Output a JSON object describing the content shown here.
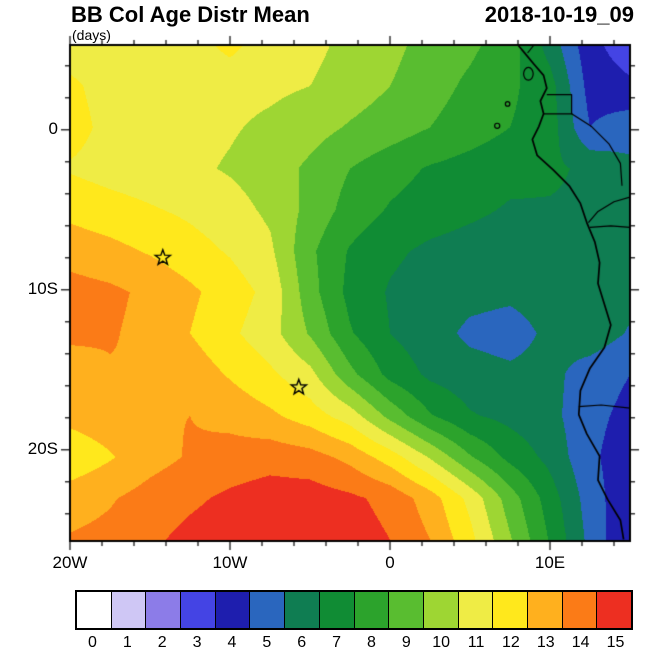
{
  "chart": {
    "title": "BB Col Age Distr Mean",
    "timestamp": "2018-10-19_09",
    "units": "(days)"
  },
  "axes": {
    "x_ticks": [
      {
        "lon": -20,
        "label": "20W"
      },
      {
        "lon": -10,
        "label": "10W"
      },
      {
        "lon": 0,
        "label": "0"
      },
      {
        "lon": 10,
        "label": "10E"
      }
    ],
    "y_ticks": [
      {
        "lat": 0,
        "label": "0"
      },
      {
        "lat": -10,
        "label": "10S"
      },
      {
        "lat": -20,
        "label": "20S"
      }
    ]
  },
  "colorbar": {
    "labels": [
      "0",
      "1",
      "2",
      "3",
      "4",
      "5",
      "6",
      "7",
      "8",
      "9",
      "10",
      "11",
      "12",
      "13",
      "14",
      "15"
    ],
    "colors": [
      "#ffffff",
      "#cfc7f5",
      "#8c7ce8",
      "#4444e4",
      "#1e1eae",
      "#2a66be",
      "#0f7d52",
      "#108c34",
      "#2ca32c",
      "#59bd30",
      "#9ed633",
      "#efec45",
      "#ffe81c",
      "#ffb01e",
      "#fb7b17",
      "#ed2f21"
    ]
  },
  "chart_data": {
    "type": "heatmap",
    "subtype": "filled_contour_map",
    "title": "BB Col Age Distr Mean",
    "timestamp": "2018-10-19_09",
    "units": "days",
    "lon_range": [
      -20,
      15
    ],
    "lat_range": [
      -25.6,
      5.3
    ],
    "contour_levels": [
      0,
      1,
      2,
      3,
      4,
      5,
      6,
      7,
      8,
      9,
      10,
      11,
      12,
      13,
      14,
      15
    ],
    "legend_position": "bottom",
    "lons": [
      -20,
      -17.5,
      -15,
      -12.5,
      -10,
      -7.5,
      -5,
      -2.5,
      0,
      2.5,
      5,
      7.5,
      10,
      12.5,
      15
    ],
    "lats": [
      5.3,
      2.725,
      0.15,
      -2.425,
      -5.0,
      -7.575,
      -10.15,
      -12.725,
      -15.3,
      -17.875,
      -20.45,
      -23.025,
      -25.6
    ],
    "values_days": [
      [
        11.5,
        11.5,
        11.5,
        11.5,
        12.3,
        11.4,
        11.3,
        10.7,
        10.3,
        9.6,
        9.2,
        8.5,
        6.6,
        4.3,
        3.4
      ],
      [
        12.2,
        11.6,
        11.5,
        11.4,
        11.3,
        11.2,
        11.0,
        10.5,
        10.0,
        9.4,
        8.8,
        8.2,
        7.4,
        4.6,
        4.2
      ],
      [
        12.4,
        11.7,
        11.5,
        11.3,
        11.1,
        10.8,
        10.4,
        9.9,
        9.5,
        9.0,
        8.5,
        8.0,
        7.5,
        5.0,
        5.6
      ],
      [
        11.9,
        11.6,
        11.4,
        11.2,
        10.9,
        10.5,
        9.8,
        9.0,
        8.4,
        7.9,
        7.6,
        7.3,
        7.2,
        6.8,
        6.2
      ],
      [
        12.7,
        12.4,
        12.1,
        11.8,
        11.4,
        10.8,
        9.7,
        8.6,
        7.9,
        7.5,
        7.2,
        6.9,
        6.9,
        6.8,
        6.3
      ],
      [
        13.6,
        13.3,
        12.9,
        12.4,
        11.9,
        11.2,
        9.2,
        7.9,
        7.2,
        6.8,
        6.6,
        6.5,
        6.6,
        6.9,
        6.4
      ],
      [
        14.4,
        14.2,
        13.8,
        13.2,
        12.5,
        11.7,
        9.4,
        7.7,
        6.9,
        6.5,
        6.3,
        6.2,
        6.4,
        6.8,
        6.3
      ],
      [
        14.2,
        14.1,
        13.7,
        13.0,
        12.2,
        11.4,
        9.9,
        8.1,
        7.0,
        6.4,
        5.8,
        5.6,
        6.2,
        6.6,
        5.9
      ],
      [
        13.5,
        13.9,
        14.0,
        13.6,
        12.9,
        12.2,
        11.3,
        9.3,
        7.7,
        6.8,
        6.4,
        6.2,
        6.3,
        5.5,
        5.0
      ],
      [
        13.3,
        13.6,
        13.9,
        14.0,
        13.7,
        13.2,
        12.5,
        11.5,
        9.7,
        8.1,
        7.1,
        6.7,
        6.3,
        5.3,
        4.7
      ],
      [
        12.3,
        12.9,
        13.6,
        14.1,
        14.4,
        14.6,
        14.4,
        13.7,
        12.5,
        10.9,
        9.1,
        7.7,
        6.7,
        5.2,
        4.4
      ],
      [
        13.5,
        13.9,
        14.4,
        14.8,
        15.2,
        15.5,
        15.5,
        15.2,
        14.7,
        13.5,
        11.7,
        9.5,
        7.5,
        5.5,
        4.2
      ],
      [
        14.1,
        14.3,
        14.8,
        15.3,
        15.6,
        15.8,
        15.8,
        15.5,
        15.0,
        14.0,
        12.3,
        10.1,
        7.9,
        5.7,
        4.0
      ]
    ],
    "markers": [
      {
        "symbol": "star",
        "lon": -14.2,
        "lat": -8.0
      },
      {
        "symbol": "star",
        "lon": -5.7,
        "lat": -16.1
      }
    ]
  },
  "map_geometry": {
    "coastline": [
      [
        8.0,
        5.3
      ],
      [
        8.5,
        4.7
      ],
      [
        9.0,
        4.1
      ],
      [
        9.6,
        3.4
      ],
      [
        9.8,
        2.6
      ],
      [
        9.4,
        1.8
      ],
      [
        9.6,
        1.0
      ],
      [
        9.3,
        0.2
      ],
      [
        8.9,
        -0.6
      ],
      [
        9.2,
        -1.6
      ],
      [
        10.2,
        -2.5
      ],
      [
        11.2,
        -3.5
      ],
      [
        11.9,
        -4.6
      ],
      [
        12.3,
        -5.8
      ],
      [
        12.8,
        -7.0
      ],
      [
        13.1,
        -8.3
      ],
      [
        13.0,
        -9.6
      ],
      [
        13.4,
        -10.9
      ],
      [
        13.8,
        -12.2
      ],
      [
        13.4,
        -13.6
      ],
      [
        12.5,
        -14.9
      ],
      [
        11.9,
        -16.3
      ],
      [
        11.8,
        -17.8
      ],
      [
        12.3,
        -19.0
      ],
      [
        13.1,
        -20.4
      ],
      [
        13.0,
        -21.9
      ],
      [
        13.6,
        -23.1
      ],
      [
        14.4,
        -24.4
      ],
      [
        14.6,
        -25.6
      ]
    ],
    "borders": [
      [
        [
          8.6,
          4.8
        ],
        [
          9.0,
          5.3
        ]
      ],
      [
        [
          9.8,
          2.2
        ],
        [
          11.35,
          2.2
        ],
        [
          11.35,
          1.0
        ],
        [
          9.6,
          1.0
        ]
      ],
      [
        [
          11.35,
          1.0
        ],
        [
          12.6,
          0.2
        ],
        [
          13.7,
          -0.9
        ],
        [
          14.4,
          -2.1
        ],
        [
          14.5,
          -3.5
        ]
      ],
      [
        [
          15,
          -4.2
        ],
        [
          14.0,
          -4.5
        ],
        [
          13.0,
          -5.1
        ],
        [
          12.4,
          -5.8
        ]
      ],
      [
        [
          12.5,
          -6.1
        ],
        [
          13.8,
          -6.0
        ],
        [
          15,
          -6.1
        ]
      ],
      [
        [
          11.8,
          -17.3
        ],
        [
          13.2,
          -17.2
        ],
        [
          15,
          -17.4
        ]
      ]
    ],
    "islands": [
      {
        "name": "bioko",
        "lon": 8.65,
        "lat": 3.5,
        "rx": 0.3,
        "ry": 0.4
      },
      {
        "name": "principe",
        "lon": 7.35,
        "lat": 1.62,
        "rx": 0.14,
        "ry": 0.14
      },
      {
        "name": "sao-tome",
        "lon": 6.7,
        "lat": 0.25,
        "rx": 0.16,
        "ry": 0.16
      }
    ]
  }
}
